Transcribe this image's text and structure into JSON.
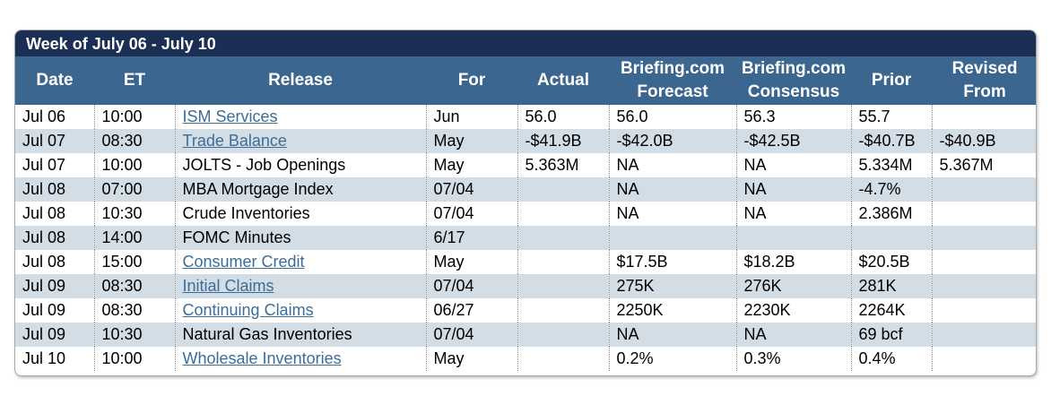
{
  "week_title": "Week of July 06 - July 10",
  "columns": {
    "date": "Date",
    "et": "ET",
    "release": "Release",
    "for": "For",
    "actual": "Actual",
    "forecast_1": "Briefing.com",
    "forecast_2": "Forecast",
    "consensus_1": "Briefing.com",
    "consensus_2": "Consensus",
    "prior": "Prior",
    "revised_1": "Revised",
    "revised_2": "From"
  },
  "rows": [
    {
      "date": "Jul 06",
      "et": "10:00",
      "release": "ISM Services",
      "link": true,
      "for": "Jun",
      "actual": "56.0",
      "forecast": "56.0",
      "consensus": "56.3",
      "prior": "55.7",
      "revised": ""
    },
    {
      "date": "Jul 07",
      "et": "08:30",
      "release": "Trade Balance",
      "link": true,
      "for": "May",
      "actual": "-$41.9B",
      "forecast": "-$42.0B",
      "consensus": "-$42.5B",
      "prior": "-$40.7B",
      "revised": "-$40.9B"
    },
    {
      "date": "Jul 07",
      "et": "10:00",
      "release": "JOLTS - Job Openings",
      "link": false,
      "for": "May",
      "actual": "5.363M",
      "forecast": "NA",
      "consensus": "NA",
      "prior": "5.334M",
      "revised": "5.367M"
    },
    {
      "date": "Jul 08",
      "et": "07:00",
      "release": "MBA Mortgage Index",
      "link": false,
      "for": "07/04",
      "actual": "",
      "forecast": "NA",
      "consensus": "NA",
      "prior": "-4.7%",
      "revised": ""
    },
    {
      "date": "Jul 08",
      "et": "10:30",
      "release": "Crude Inventories",
      "link": false,
      "for": "07/04",
      "actual": "",
      "forecast": "NA",
      "consensus": "NA",
      "prior": "2.386M",
      "revised": ""
    },
    {
      "date": "Jul 08",
      "et": "14:00",
      "release": "FOMC Minutes",
      "link": false,
      "for": "6/17",
      "actual": "",
      "forecast": "",
      "consensus": "",
      "prior": "",
      "revised": ""
    },
    {
      "date": "Jul 08",
      "et": "15:00",
      "release": "Consumer Credit",
      "link": true,
      "for": "May",
      "actual": "",
      "forecast": "$17.5B",
      "consensus": "$18.2B",
      "prior": "$20.5B",
      "revised": ""
    },
    {
      "date": "Jul 09",
      "et": "08:30",
      "release": "Initial Claims",
      "link": true,
      "for": "07/04",
      "actual": "",
      "forecast": "275K",
      "consensus": "276K",
      "prior": "281K",
      "revised": ""
    },
    {
      "date": "Jul 09",
      "et": "08:30",
      "release": "Continuing Claims",
      "link": true,
      "for": "06/27",
      "actual": "",
      "forecast": "2250K",
      "consensus": "2230K",
      "prior": "2264K",
      "revised": ""
    },
    {
      "date": "Jul 09",
      "et": "10:30",
      "release": "Natural Gas Inventories",
      "link": false,
      "for": "07/04",
      "actual": "",
      "forecast": "NA",
      "consensus": "NA",
      "prior": "69 bcf",
      "revised": ""
    },
    {
      "date": "Jul 10",
      "et": "10:00",
      "release": "Wholesale Inventories",
      "link": true,
      "for": "May",
      "actual": "",
      "forecast": "0.2%",
      "consensus": "0.3%",
      "prior": "0.4%",
      "revised": ""
    }
  ]
}
